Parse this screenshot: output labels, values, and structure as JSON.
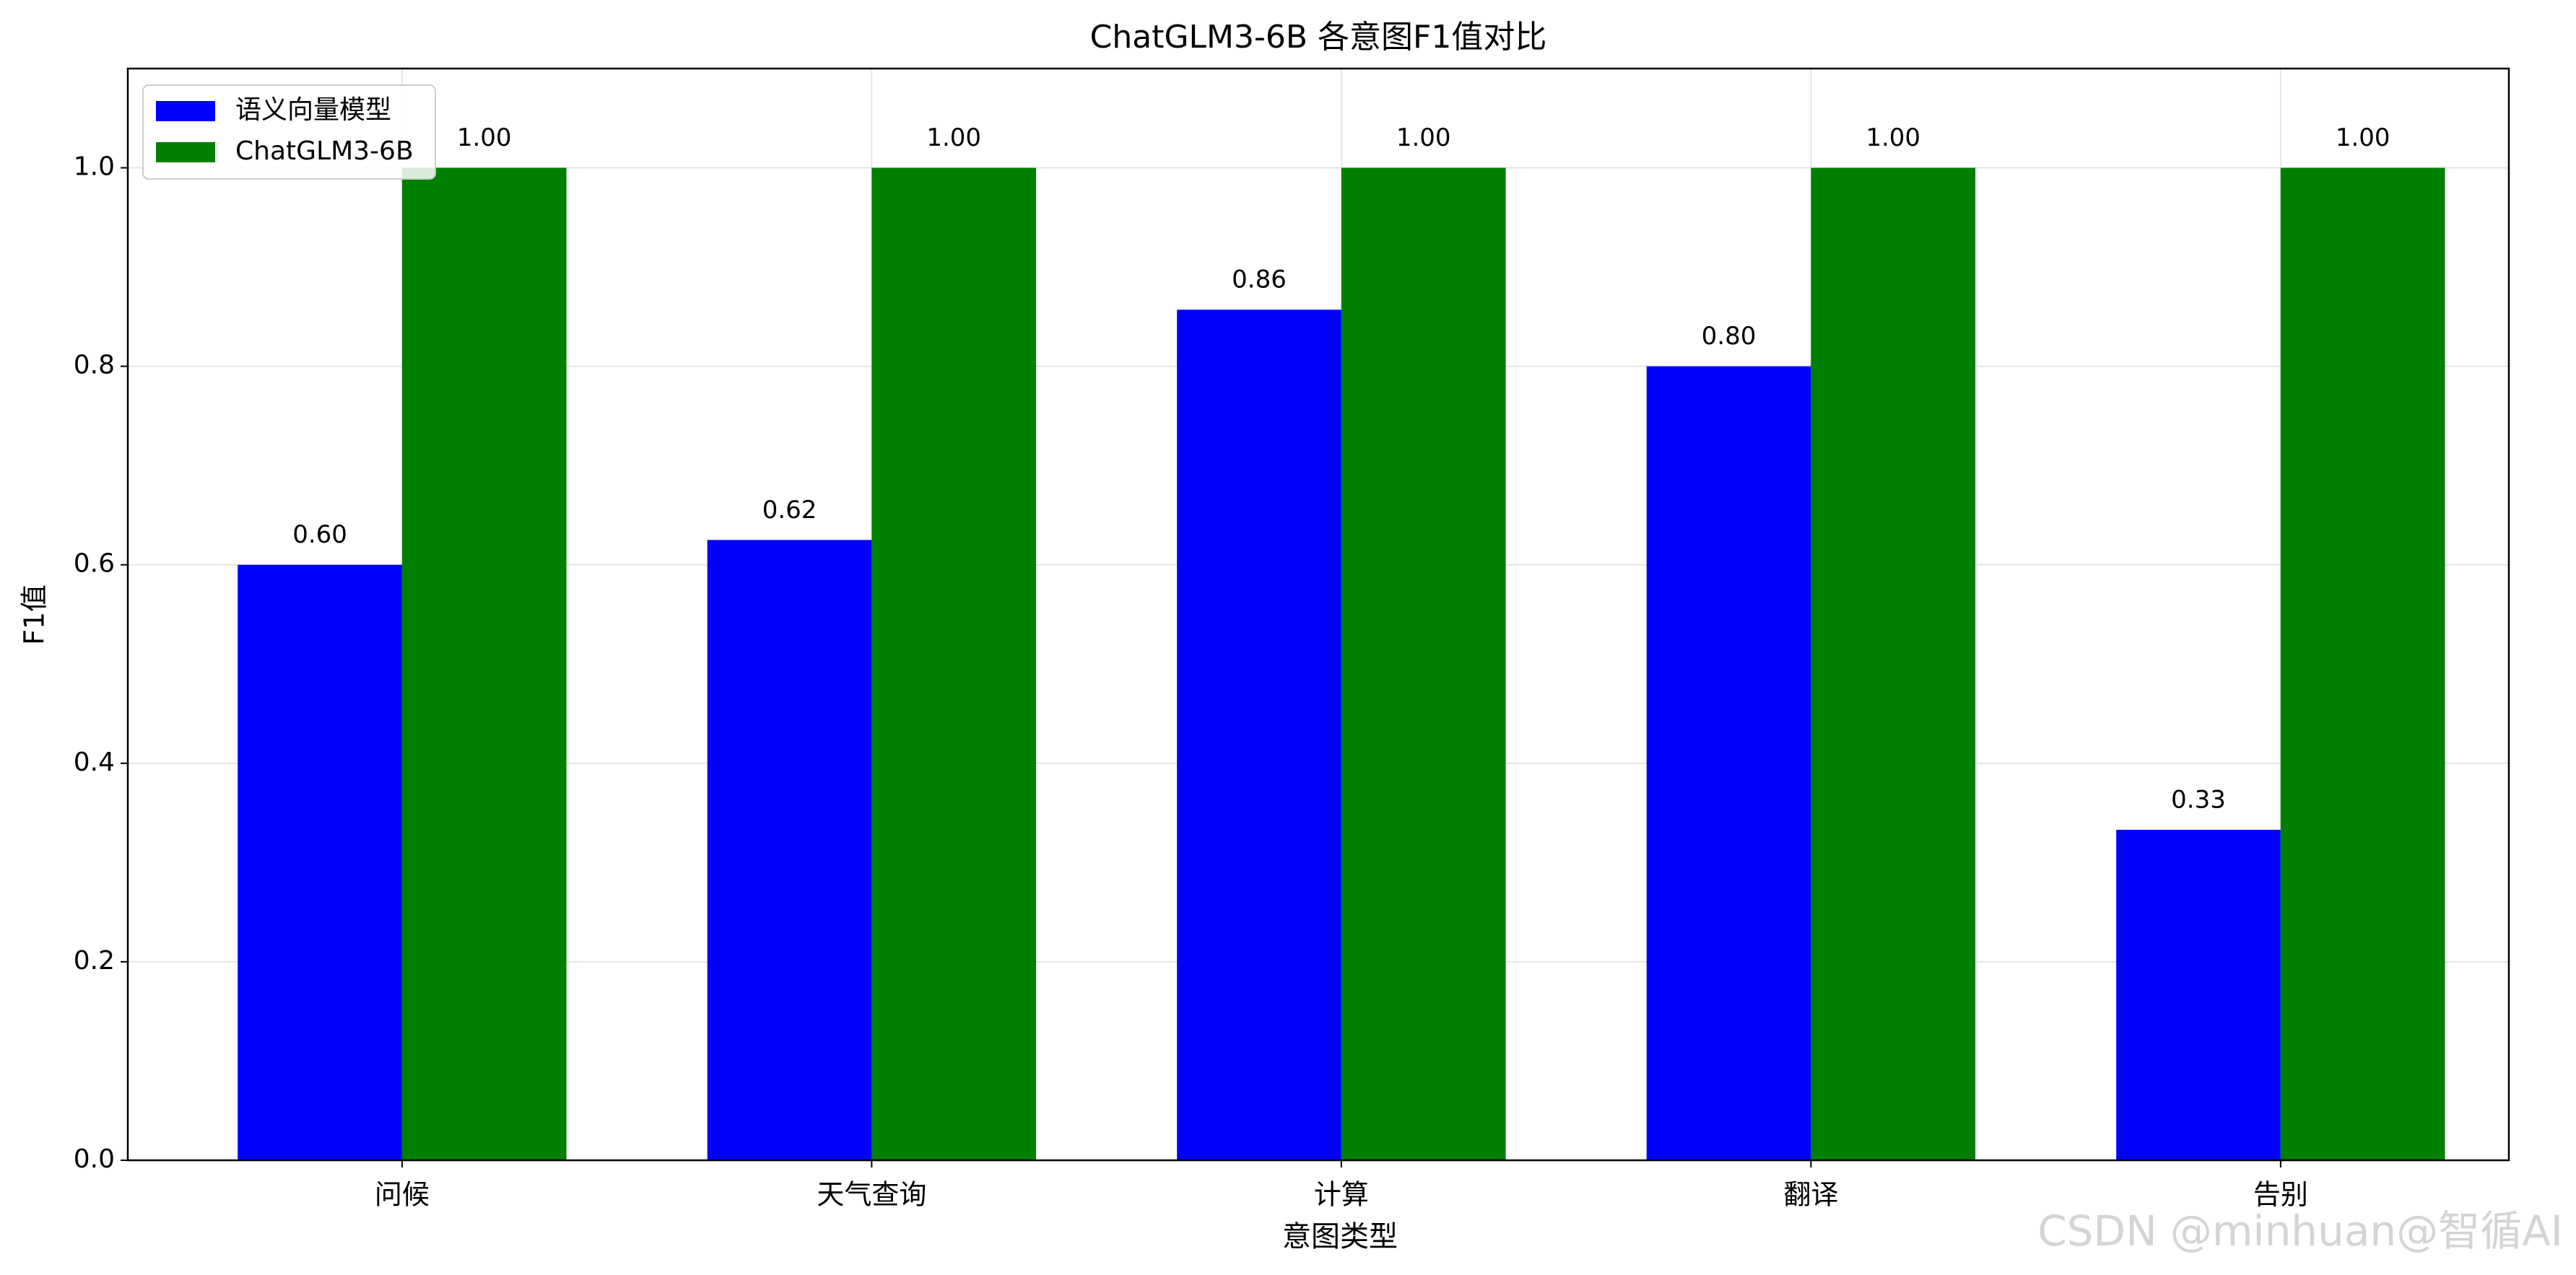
{
  "chart_data": {
    "type": "bar",
    "title": "ChatGLM3-6B 各意图F1值对比",
    "xlabel": "意图类型",
    "ylabel": "F1值",
    "categories": [
      "问候",
      "天气查询",
      "计算",
      "翻译",
      "告别"
    ],
    "series": [
      {
        "name": "语义向量模型",
        "color": "#0000ff",
        "values": [
          0.6,
          0.625,
          0.857,
          0.8,
          0.333
        ],
        "value_labels": [
          "0.60",
          "0.62",
          "0.86",
          "0.80",
          "0.33"
        ]
      },
      {
        "name": "ChatGLM3-6B",
        "color": "#008000",
        "values": [
          1,
          1,
          1,
          1,
          1
        ],
        "value_labels": [
          "1.00",
          "1.00",
          "1.00",
          "1.00",
          "1.00"
        ]
      }
    ],
    "ylim": [
      0,
      1.1
    ],
    "yticks": [
      {
        "value": 0,
        "label": "0.0"
      },
      {
        "value": 0.2,
        "label": "0.2"
      },
      {
        "value": 0.4,
        "label": "0.4"
      },
      {
        "value": 0.6,
        "label": "0.6"
      },
      {
        "value": 0.8,
        "label": "0.8"
      },
      {
        "value": 1,
        "label": "1.0"
      }
    ],
    "grid": true,
    "legend": "upper-left",
    "watermark": "CSDN @minhuan@智循AI"
  }
}
